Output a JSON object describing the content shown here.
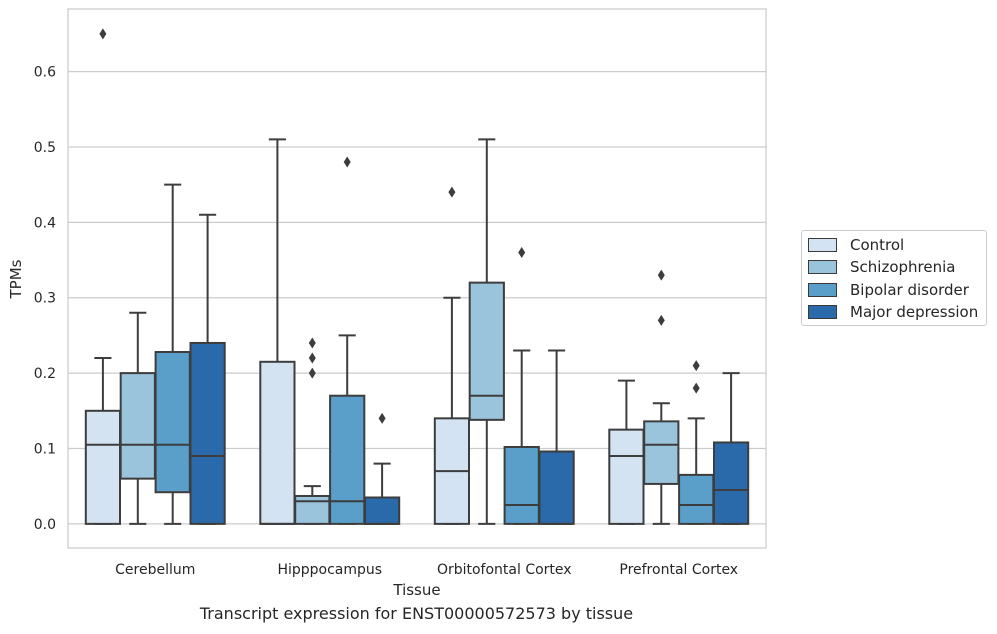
{
  "caption": "Transcript expression for ENST00000572573 by tissue",
  "chart_data": {
    "type": "box",
    "xlabel": "Tissue",
    "ylabel": "TPMs",
    "ylim": [
      -0.032,
      0.683
    ],
    "yticks": [
      "0.0",
      "0.1",
      "0.2",
      "0.3",
      "0.4",
      "0.5",
      "0.6"
    ],
    "grid": "horizontal",
    "legend_position": "right",
    "categories": [
      "Cerebellum",
      "Hipppocampus",
      "Orbitofontal Cortex",
      "Prefrontal Cortex"
    ],
    "series": [
      {
        "name": "Control",
        "color": "#d3e3f2",
        "boxes": [
          {
            "whislo": 0.0,
            "q1": 0.0,
            "med": 0.105,
            "q3": 0.15,
            "whishi": 0.22,
            "fliers": [
              0.65
            ]
          },
          {
            "whislo": 0.0,
            "q1": 0.0,
            "med": 0.0,
            "q3": 0.215,
            "whishi": 0.51,
            "fliers": []
          },
          {
            "whislo": 0.0,
            "q1": 0.0,
            "med": 0.07,
            "q3": 0.14,
            "whishi": 0.3,
            "fliers": [
              0.44
            ]
          },
          {
            "whislo": 0.0,
            "q1": 0.0,
            "med": 0.09,
            "q3": 0.125,
            "whishi": 0.19,
            "fliers": []
          }
        ]
      },
      {
        "name": "Schizophrenia",
        "color": "#9ac3dc",
        "boxes": [
          {
            "whislo": 0.0,
            "q1": 0.06,
            "med": 0.105,
            "q3": 0.2,
            "whishi": 0.28,
            "fliers": []
          },
          {
            "whislo": 0.0,
            "q1": 0.0,
            "med": 0.03,
            "q3": 0.037,
            "whishi": 0.05,
            "fliers": [
              0.2,
              0.22,
              0.24
            ]
          },
          {
            "whislo": 0.0,
            "q1": 0.138,
            "med": 0.17,
            "q3": 0.32,
            "whishi": 0.51,
            "fliers": []
          },
          {
            "whislo": 0.0,
            "q1": 0.053,
            "med": 0.105,
            "q3": 0.136,
            "whishi": 0.16,
            "fliers": [
              0.27,
              0.33
            ]
          }
        ]
      },
      {
        "name": "Bipolar disorder",
        "color": "#5a9fca",
        "boxes": [
          {
            "whislo": 0.0,
            "q1": 0.042,
            "med": 0.105,
            "q3": 0.228,
            "whishi": 0.45,
            "fliers": []
          },
          {
            "whislo": 0.0,
            "q1": 0.0,
            "med": 0.03,
            "q3": 0.17,
            "whishi": 0.25,
            "fliers": [
              0.48
            ]
          },
          {
            "whislo": 0.0,
            "q1": 0.0,
            "med": 0.025,
            "q3": 0.102,
            "whishi": 0.23,
            "fliers": [
              0.36
            ]
          },
          {
            "whislo": 0.0,
            "q1": 0.0,
            "med": 0.025,
            "q3": 0.065,
            "whishi": 0.14,
            "fliers": [
              0.18,
              0.21
            ]
          }
        ]
      },
      {
        "name": "Major depression",
        "color": "#2a6aaa",
        "boxes": [
          {
            "whislo": 0.0,
            "q1": 0.0,
            "med": 0.09,
            "q3": 0.24,
            "whishi": 0.41,
            "fliers": []
          },
          {
            "whislo": 0.0,
            "q1": 0.0,
            "med": 0.0,
            "q3": 0.035,
            "whishi": 0.08,
            "fliers": [
              0.14
            ]
          },
          {
            "whislo": 0.0,
            "q1": 0.0,
            "med": 0.0,
            "q3": 0.096,
            "whishi": 0.23,
            "fliers": []
          },
          {
            "whislo": 0.0,
            "q1": 0.0,
            "med": 0.045,
            "q3": 0.108,
            "whishi": 0.2,
            "fliers": []
          }
        ]
      }
    ]
  }
}
